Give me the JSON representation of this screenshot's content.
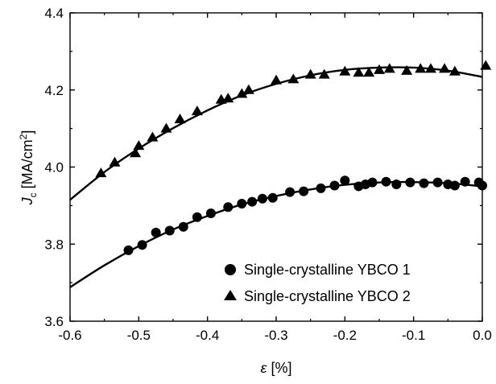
{
  "chart_data": {
    "type": "scatter",
    "x_label_var": "ε",
    "x_label_unit": " [%]",
    "y_label_var": "J",
    "y_label_sub": "c",
    "y_label_unit": " [MA/cm",
    "y_label_sup": "2",
    "y_label_close": "]",
    "xlim": [
      -0.6,
      0.0
    ],
    "ylim": [
      3.6,
      4.4
    ],
    "x_ticks": [
      -0.6,
      -0.5,
      -0.4,
      -0.3,
      -0.2,
      -0.1,
      0.0
    ],
    "x_tick_labels": [
      "-0.6",
      "-0.5",
      "-0.4",
      "-0.3",
      "-0.2",
      "-0.1",
      "0.0"
    ],
    "y_ticks": [
      3.6,
      3.8,
      4.0,
      4.2,
      4.4
    ],
    "y_tick_labels": [
      "3.6",
      "3.8",
      "4.0",
      "4.2",
      "4.4"
    ],
    "grid": false,
    "legend_position": "bottom-right",
    "series": [
      {
        "name": "Single-crystalline YBCO 1",
        "marker": "circle",
        "color": "#000000",
        "points": [
          [
            -0.515,
            3.784
          ],
          [
            -0.495,
            3.798
          ],
          [
            -0.475,
            3.83
          ],
          [
            -0.455,
            3.835
          ],
          [
            -0.435,
            3.845
          ],
          [
            -0.415,
            3.87
          ],
          [
            -0.395,
            3.88
          ],
          [
            -0.37,
            3.896
          ],
          [
            -0.35,
            3.905
          ],
          [
            -0.335,
            3.91
          ],
          [
            -0.32,
            3.918
          ],
          [
            -0.305,
            3.92
          ],
          [
            -0.28,
            3.935
          ],
          [
            -0.26,
            3.937
          ],
          [
            -0.235,
            3.945
          ],
          [
            -0.215,
            3.952
          ],
          [
            -0.2,
            3.965
          ],
          [
            -0.18,
            3.95
          ],
          [
            -0.17,
            3.955
          ],
          [
            -0.16,
            3.96
          ],
          [
            -0.14,
            3.962
          ],
          [
            -0.125,
            3.955
          ],
          [
            -0.105,
            3.96
          ],
          [
            -0.085,
            3.958
          ],
          [
            -0.065,
            3.96
          ],
          [
            -0.05,
            3.955
          ],
          [
            -0.04,
            3.952
          ],
          [
            -0.025,
            3.962
          ],
          [
            -0.005,
            3.96
          ],
          [
            0.0,
            3.952
          ]
        ]
      },
      {
        "name": "Single-crystalline YBCO 2",
        "marker": "triangle",
        "color": "#000000",
        "points": [
          [
            -0.555,
            3.984
          ],
          [
            -0.535,
            4.012
          ],
          [
            -0.505,
            4.036
          ],
          [
            -0.5,
            4.055
          ],
          [
            -0.48,
            4.077
          ],
          [
            -0.46,
            4.1
          ],
          [
            -0.44,
            4.124
          ],
          [
            -0.415,
            4.145
          ],
          [
            -0.38,
            4.175
          ],
          [
            -0.37,
            4.178
          ],
          [
            -0.35,
            4.19
          ],
          [
            -0.34,
            4.2
          ],
          [
            -0.3,
            4.225
          ],
          [
            -0.275,
            4.228
          ],
          [
            -0.25,
            4.24
          ],
          [
            -0.23,
            4.24
          ],
          [
            -0.2,
            4.248
          ],
          [
            -0.18,
            4.245
          ],
          [
            -0.165,
            4.245
          ],
          [
            -0.15,
            4.252
          ],
          [
            -0.135,
            4.255
          ],
          [
            -0.11,
            4.25
          ],
          [
            -0.09,
            4.255
          ],
          [
            -0.075,
            4.255
          ],
          [
            -0.055,
            4.255
          ],
          [
            -0.04,
            4.248
          ],
          [
            0.005,
            4.263
          ]
        ]
      }
    ],
    "fits": [
      {
        "series": "Single-crystalline YBCO 1",
        "x": [
          -0.6,
          -0.55,
          -0.5,
          -0.45,
          -0.4,
          -0.35,
          -0.3,
          -0.25,
          -0.2,
          -0.15,
          -0.1,
          -0.05,
          0.0
        ],
        "y": [
          3.688,
          3.745,
          3.795,
          3.838,
          3.873,
          3.903,
          3.925,
          3.942,
          3.954,
          3.96,
          3.961,
          3.958,
          3.95
        ]
      },
      {
        "series": "Single-crystalline YBCO 2",
        "x": [
          -0.6,
          -0.55,
          -0.5,
          -0.45,
          -0.4,
          -0.35,
          -0.3,
          -0.25,
          -0.2,
          -0.15,
          -0.1,
          -0.05,
          0.0
        ],
        "y": [
          3.915,
          3.987,
          4.048,
          4.101,
          4.147,
          4.186,
          4.216,
          4.238,
          4.252,
          4.258,
          4.258,
          4.25,
          4.234
        ]
      }
    ]
  }
}
